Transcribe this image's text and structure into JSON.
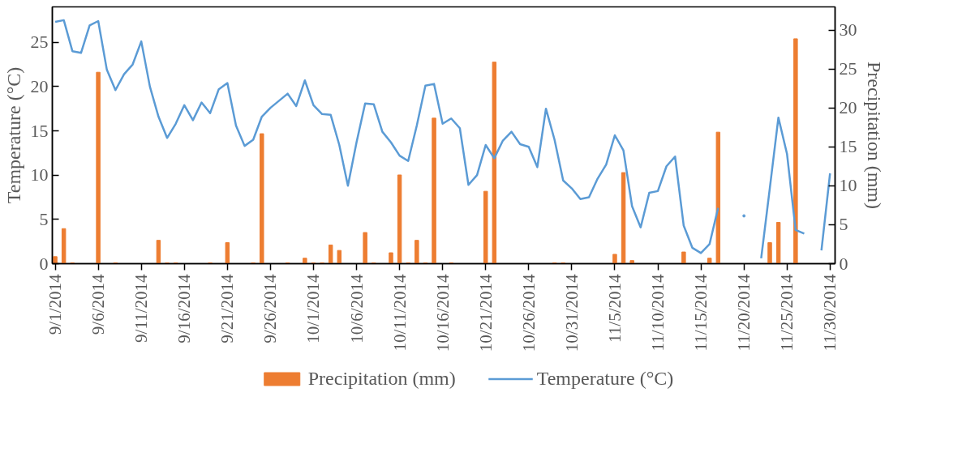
{
  "chart_data": {
    "type": "bar",
    "ylabel": "Temperature (°C)",
    "y2label": "Precipitation (mm)",
    "x": [
      "2014-09-01",
      "2014-09-02",
      "2014-09-03",
      "2014-09-04",
      "2014-09-05",
      "2014-09-06",
      "2014-09-07",
      "2014-09-08",
      "2014-09-09",
      "2014-09-10",
      "2014-09-11",
      "2014-09-12",
      "2014-09-13",
      "2014-09-14",
      "2014-09-15",
      "2014-09-16",
      "2014-09-17",
      "2014-09-18",
      "2014-09-19",
      "2014-09-20",
      "2014-09-21",
      "2014-09-22",
      "2014-09-23",
      "2014-09-24",
      "2014-09-25",
      "2014-09-26",
      "2014-09-27",
      "2014-09-28",
      "2014-09-29",
      "2014-09-30",
      "2014-10-01",
      "2014-10-02",
      "2014-10-03",
      "2014-10-04",
      "2014-10-05",
      "2014-10-06",
      "2014-10-07",
      "2014-10-08",
      "2014-10-09",
      "2014-10-10",
      "2014-10-11",
      "2014-10-12",
      "2014-10-13",
      "2014-10-14",
      "2014-10-15",
      "2014-10-16",
      "2014-10-17",
      "2014-10-18",
      "2014-10-19",
      "2014-10-20",
      "2014-10-21",
      "2014-10-22",
      "2014-10-23",
      "2014-10-24",
      "2014-10-25",
      "2014-10-26",
      "2014-10-27",
      "2014-10-28",
      "2014-10-29",
      "2014-10-30",
      "2014-10-31",
      "2014-11-01",
      "2014-11-02",
      "2014-11-03",
      "2014-11-04",
      "2014-11-05",
      "2014-11-06",
      "2014-11-07",
      "2014-11-08",
      "2014-11-09",
      "2014-11-10",
      "2014-11-11",
      "2014-11-12",
      "2014-11-13",
      "2014-11-14",
      "2014-11-15",
      "2014-11-16",
      "2014-11-17",
      "2014-11-18",
      "2014-11-19",
      "2014-11-20",
      "2014-11-21",
      "2014-11-22",
      "2014-11-23",
      "2014-11-24",
      "2014-11-25",
      "2014-11-26",
      "2014-11-27",
      "2014-11-28",
      "2014-11-29",
      "2014-11-30"
    ],
    "series": [
      {
        "name": "Precipitation (mm)",
        "axis": "y2",
        "color": "#ed7d31",
        "values": [
          0.9,
          4.5,
          0.1,
          0,
          0,
          24.6,
          0,
          0.1,
          0,
          0,
          0,
          0,
          3.0,
          0.1,
          0.1,
          0,
          0,
          0,
          0.1,
          0,
          2.7,
          0,
          0,
          0.1,
          16.7,
          0,
          0,
          0.1,
          0,
          0.7,
          0.1,
          0.1,
          2.4,
          1.7,
          0,
          0,
          4.0,
          0.1,
          0,
          1.4,
          11.4,
          0.1,
          3.0,
          0.1,
          18.7,
          0,
          0.1,
          0,
          0,
          0,
          9.3,
          25.9,
          0,
          0,
          0,
          0,
          0,
          0,
          0.1,
          0.1,
          0,
          0,
          0,
          0,
          0,
          1.2,
          11.7,
          0.4,
          0,
          0,
          0,
          0,
          0,
          1.5,
          0,
          0,
          0.7,
          16.9,
          0,
          0,
          0,
          0,
          0,
          2.7,
          5.3,
          0,
          28.9,
          0,
          0,
          0,
          0
        ]
      },
      {
        "name": "Temperature (°C)",
        "type": "line",
        "color": "#5b9bd5",
        "values": [
          27.3,
          27.5,
          24.0,
          23.8,
          26.9,
          27.4,
          21.9,
          19.6,
          21.4,
          22.5,
          25.1,
          20.0,
          16.6,
          14.2,
          15.8,
          17.9,
          16.2,
          18.2,
          17.0,
          19.7,
          20.4,
          15.6,
          13.3,
          14.0,
          16.6,
          17.6,
          18.4,
          19.2,
          17.8,
          20.7,
          17.9,
          16.9,
          16.8,
          13.4,
          8.8,
          13.7,
          18.1,
          18.0,
          14.9,
          13.7,
          12.2,
          11.6,
          15.6,
          20.1,
          20.3,
          15.8,
          16.4,
          15.3,
          8.9,
          10.0,
          13.4,
          11.9,
          13.9,
          14.9,
          13.5,
          13.2,
          10.9,
          17.5,
          14.0,
          9.4,
          8.5,
          7.3,
          7.5,
          9.6,
          11.2,
          14.5,
          12.8,
          6.5,
          4.1,
          8.0,
          8.2,
          11.0,
          12.1,
          4.3,
          1.8,
          1.2,
          2.2,
          6.3,
          null,
          null,
          5.4,
          null,
          0.6,
          8.5,
          16.5,
          12.4,
          3.8,
          3.4,
          null,
          1.5,
          10.2
        ]
      }
    ],
    "xlim": [
      "2014-08-31T16:00",
      "2014-11-30T14:00"
    ],
    "xticks": [
      {
        "value": "2014-09-01",
        "label": "9/1/2014"
      },
      {
        "value": "2014-09-06",
        "label": "9/6/2014"
      },
      {
        "value": "2014-09-11",
        "label": "9/11/2014"
      },
      {
        "value": "2014-09-16",
        "label": "9/16/2014"
      },
      {
        "value": "2014-09-21",
        "label": "9/21/2014"
      },
      {
        "value": "2014-09-26",
        "label": "9/26/2014"
      },
      {
        "value": "2014-10-01",
        "label": "10/1/2014"
      },
      {
        "value": "2014-10-06",
        "label": "10/6/2014"
      },
      {
        "value": "2014-10-11",
        "label": "10/11/2014"
      },
      {
        "value": "2014-10-16",
        "label": "10/16/2014"
      },
      {
        "value": "2014-10-21",
        "label": "10/21/2014"
      },
      {
        "value": "2014-10-26",
        "label": "10/26/2014"
      },
      {
        "value": "2014-10-31",
        "label": "10/31/2014"
      },
      {
        "value": "2014-11-05",
        "label": "11/5/2014"
      },
      {
        "value": "2014-11-10",
        "label": "11/10/2014"
      },
      {
        "value": "2014-11-15",
        "label": "11/15/2014"
      },
      {
        "value": "2014-11-20",
        "label": "11/20/2014"
      },
      {
        "value": "2014-11-25",
        "label": "11/25/2014"
      },
      {
        "value": "2014-11-30",
        "label": "11/30/2014"
      }
    ],
    "ylim": [
      0,
      29
    ],
    "yticks": [
      0,
      5,
      10,
      15,
      20,
      25
    ],
    "y2lim": [
      0,
      33
    ],
    "y2ticks": [
      0,
      5,
      10,
      15,
      20,
      25,
      30
    ],
    "grid": false,
    "legend": "bottom"
  }
}
